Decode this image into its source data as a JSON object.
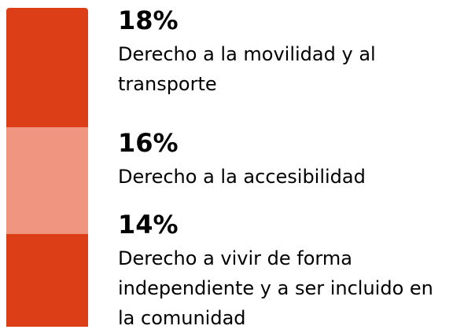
{
  "chart_data": {
    "type": "stacked-bar",
    "series": [
      {
        "name": "Derecho a la movilidad y al transporte",
        "color": "#dc3f17",
        "values": [
          18
        ],
        "value_labels": [
          "18%"
        ]
      },
      {
        "name": "Derecho a la accesibilidad",
        "color": "#ef9580",
        "values": [
          16
        ],
        "value_labels": [
          "16%"
        ]
      },
      {
        "name": "Derecho a vivir de forma independiente y a ser incluido en la comunidad",
        "color": "#dc3f17",
        "values": [
          14
        ],
        "value_labels": [
          "14%"
        ]
      }
    ]
  }
}
